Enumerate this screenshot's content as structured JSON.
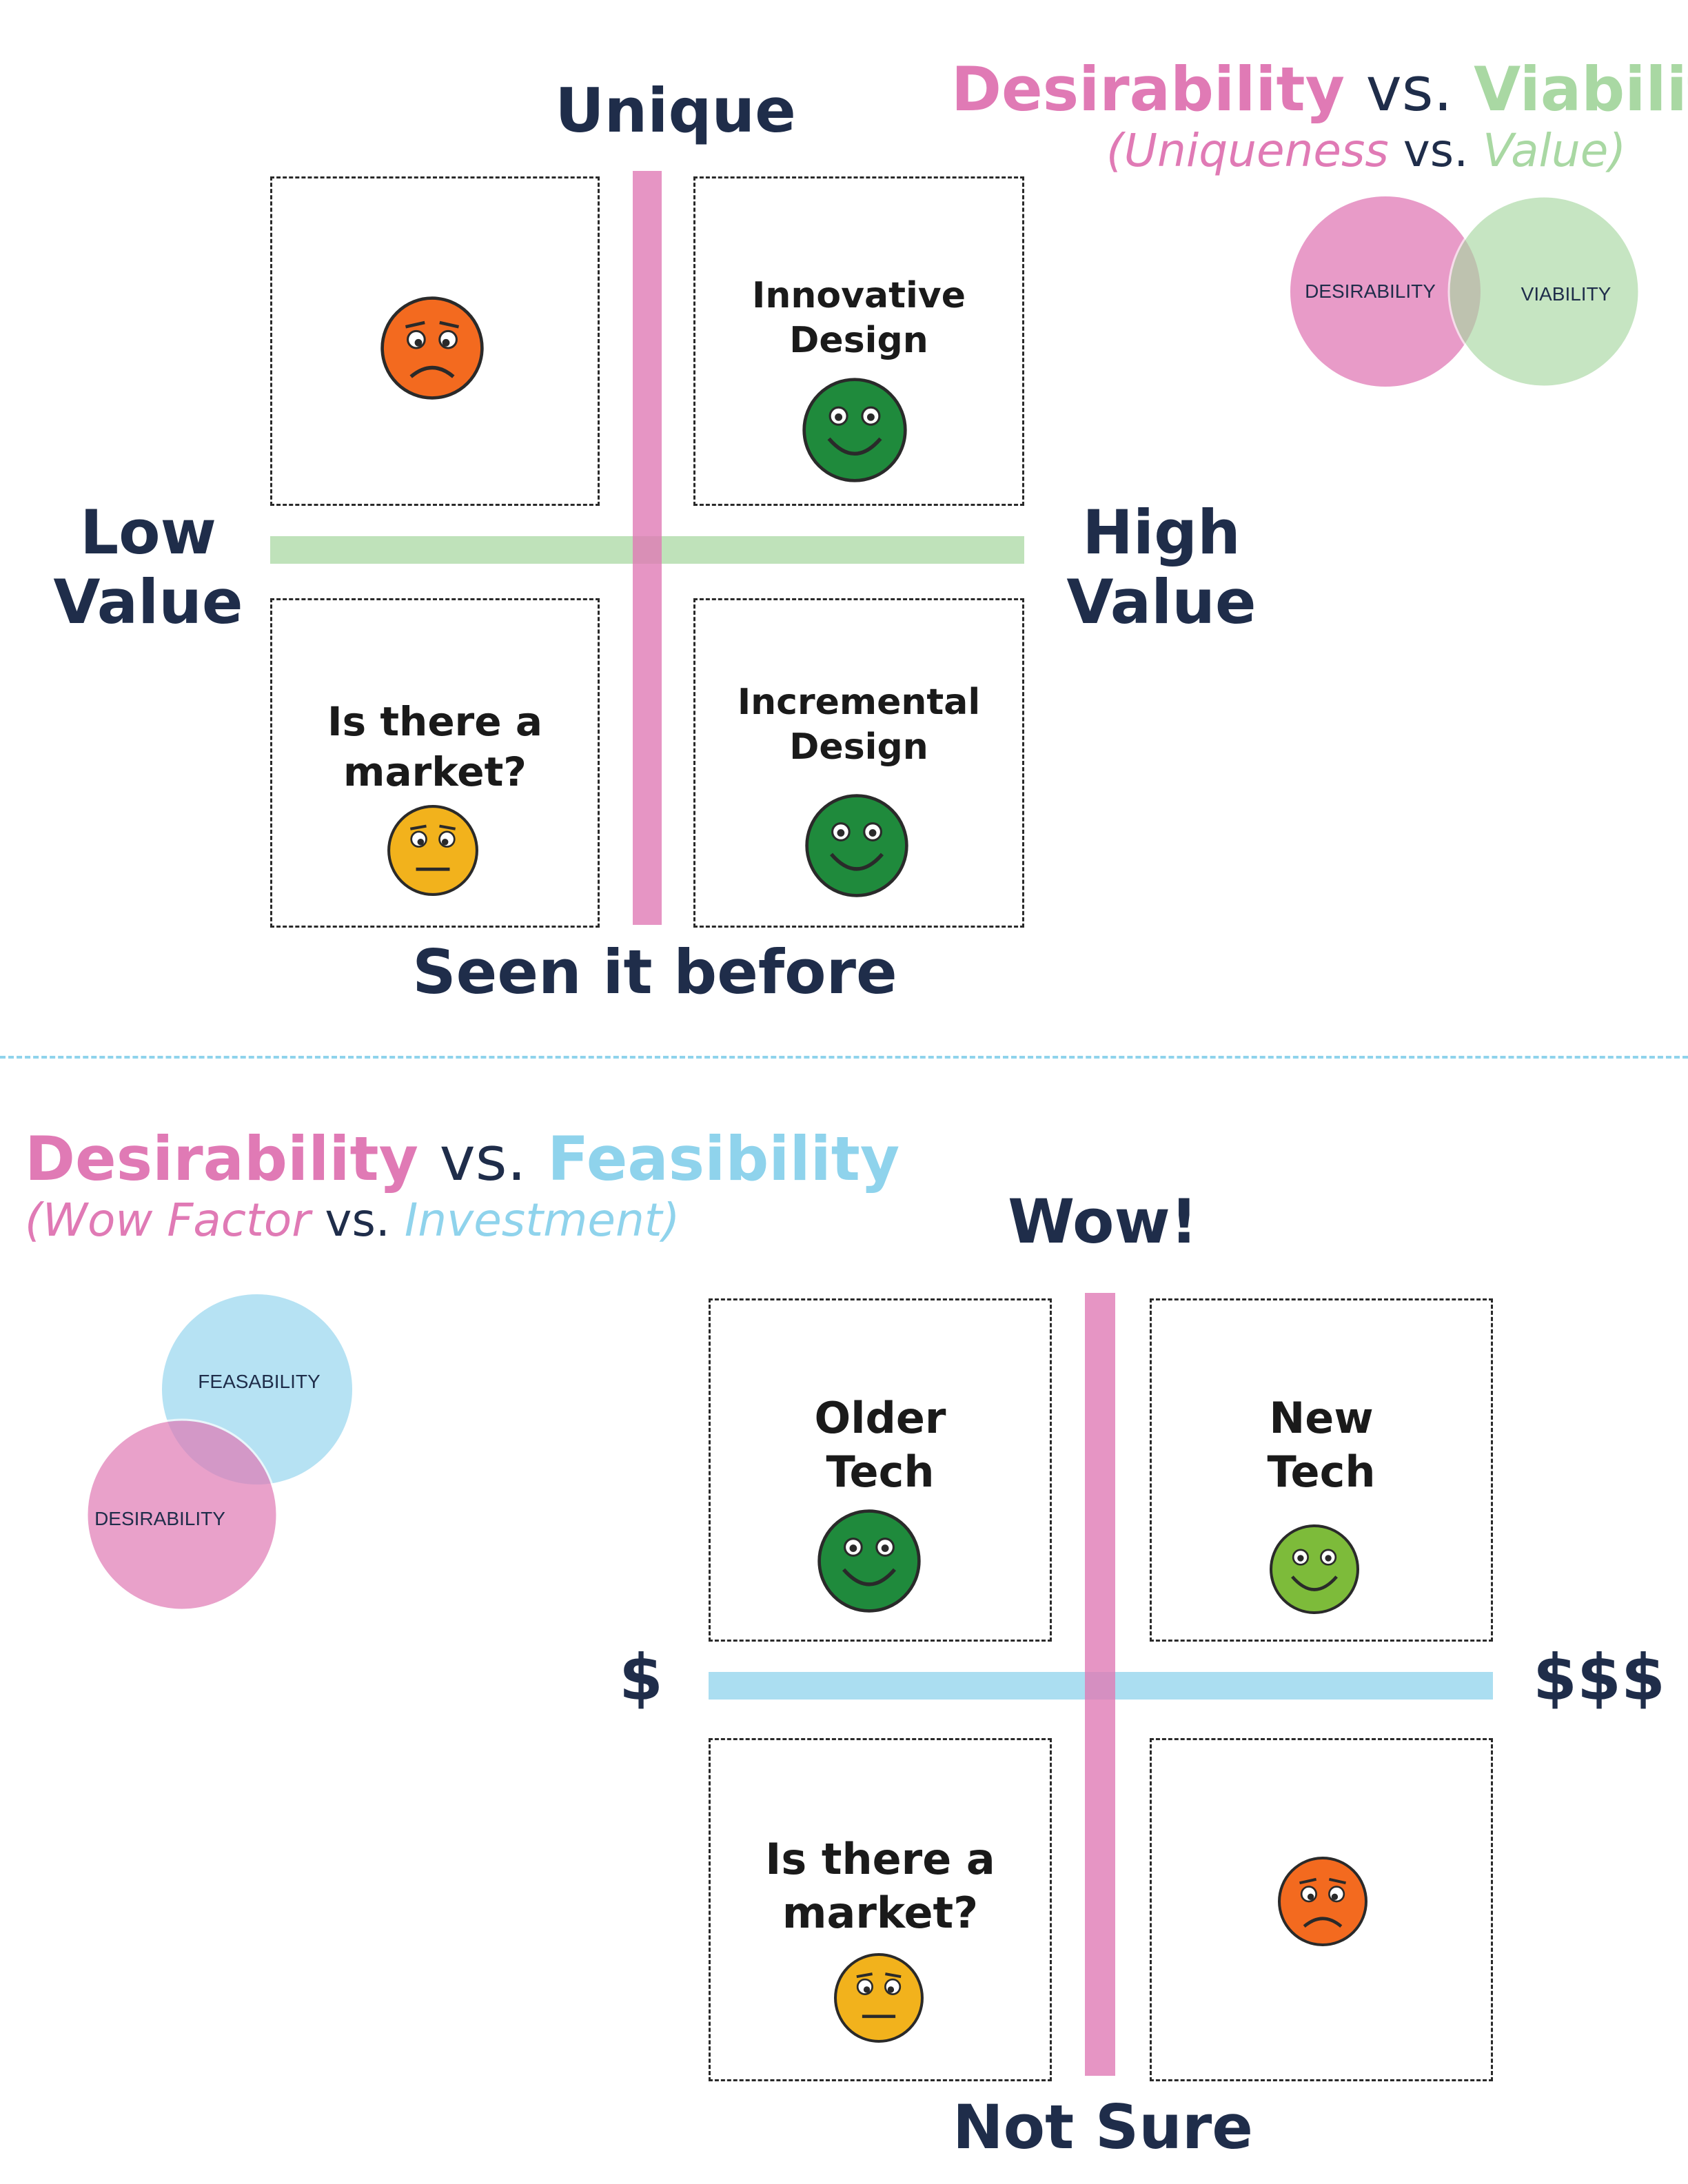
{
  "top": {
    "title": {
      "a": "Desirability",
      "vs": "vs.",
      "b": "Viability"
    },
    "subtitle": {
      "open": "(",
      "a": "Uniqueness",
      "vs": "vs.",
      "b": "Value",
      "close": ")"
    },
    "venn": {
      "left": "DESIRABILITY",
      "right": "VIABILITY"
    },
    "axis": {
      "top": "Unique",
      "bottom": "Seen it before",
      "left": [
        "Low",
        "Value"
      ],
      "right": [
        "High",
        "Value"
      ]
    },
    "quadrants": {
      "top_left": {
        "text": [],
        "face": "sad-orange"
      },
      "top_right": {
        "text": [
          "Innovative",
          "Design"
        ],
        "face": "happy-green"
      },
      "bottom_left": {
        "text": [
          "Is there a",
          "market?"
        ],
        "face": "worried-yellow"
      },
      "bottom_right": {
        "text": [
          "Incremental",
          "Design"
        ],
        "face": "happy-green"
      }
    }
  },
  "bottom": {
    "title": {
      "a": "Desirability",
      "vs": "vs.",
      "b": "Feasibility"
    },
    "subtitle": {
      "open": "(",
      "a": "Wow Factor",
      "vs": "vs.",
      "b": "Investment",
      "close": ")"
    },
    "venn": {
      "top": "FEASABILITY",
      "bottom": "DESIRABILITY"
    },
    "axis": {
      "top": "Wow!",
      "bottom": "Not Sure",
      "left": "$",
      "right": "$$$"
    },
    "quadrants": {
      "top_left": {
        "text": [
          "Older",
          "Tech"
        ],
        "face": "happy-green"
      },
      "top_right": {
        "text": [
          "New",
          "Tech"
        ],
        "face": "happy-light-green"
      },
      "bottom_left": {
        "text": [
          "Is there a",
          "market?"
        ],
        "face": "worried-yellow"
      },
      "bottom_right": {
        "text": [],
        "face": "sad-orange"
      }
    }
  },
  "colors": {
    "pink": "#e07ab5",
    "green": "#a9d8a3",
    "blue": "#8fd3ec",
    "navy": "#1f2d4a",
    "face_green": "#1f8a3c",
    "face_light_green": "#7dbb3a",
    "face_orange": "#f36a1f",
    "face_yellow": "#f2b21c"
  }
}
